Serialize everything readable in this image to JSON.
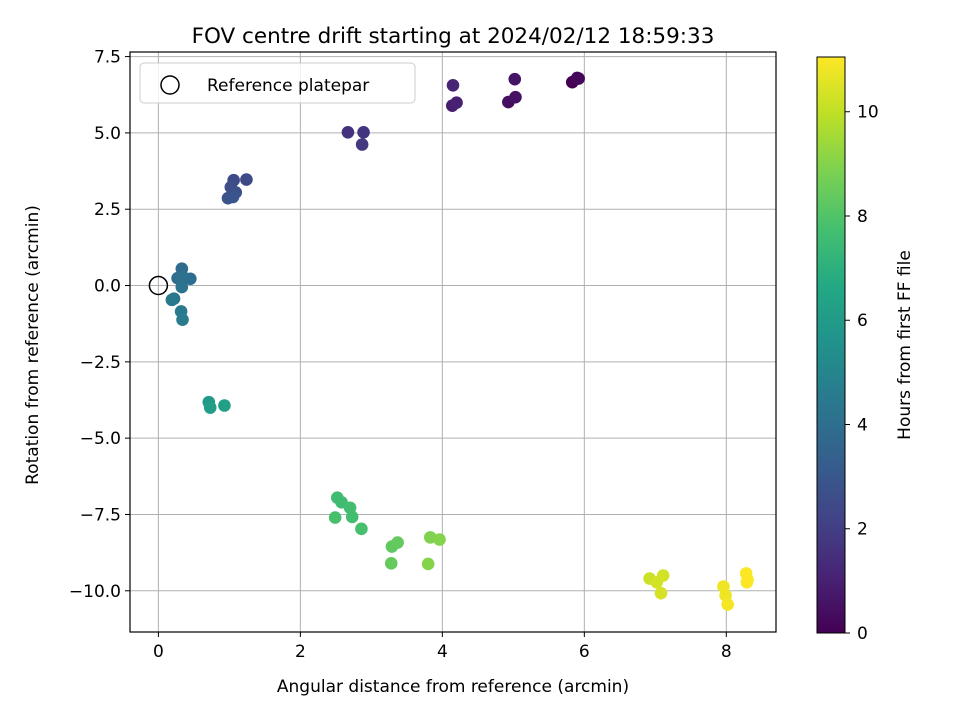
{
  "chart_data": {
    "type": "scatter",
    "title": "FOV centre drift starting at 2024/02/12 18:59:33",
    "xlabel": "Angular distance from reference (arcmin)",
    "ylabel": "Rotation from reference (arcmin)",
    "xlim": [
      -0.4,
      8.7
    ],
    "ylim": [
      -11.35,
      7.65
    ],
    "xticks": [
      0,
      2,
      4,
      6,
      8
    ],
    "xtick_labels": [
      "0",
      "2",
      "4",
      "6",
      "8"
    ],
    "yticks": [
      7.5,
      5.0,
      2.5,
      0.0,
      -2.5,
      -5.0,
      -7.5,
      -10.0
    ],
    "ytick_labels": [
      "7.5",
      "5.0",
      "2.5",
      "0.0",
      "−2.5",
      "−5.0",
      "−7.5",
      "−10.0"
    ],
    "grid": true,
    "legend": {
      "position": "upper-left",
      "entries": [
        "Reference platepar"
      ]
    },
    "reference_point": {
      "x": 0.0,
      "y": 0.0
    },
    "colorbar": {
      "label": "Hours from first FF file",
      "colormap": "viridis",
      "range": [
        0,
        11.05
      ],
      "ticks": [
        0,
        2,
        4,
        6,
        8,
        10
      ],
      "tick_labels": [
        "0",
        "2",
        "4",
        "6",
        "8",
        "10"
      ]
    },
    "points": [
      {
        "x": 5.83,
        "y": 6.66,
        "t": 0.0
      },
      {
        "x": 5.9,
        "y": 6.8,
        "t": 0.1
      },
      {
        "x": 5.92,
        "y": 6.78,
        "t": 0.2
      },
      {
        "x": 4.93,
        "y": 6.01,
        "t": 0.4
      },
      {
        "x": 5.03,
        "y": 6.17,
        "t": 0.5
      },
      {
        "x": 5.02,
        "y": 6.76,
        "t": 0.6
      },
      {
        "x": 4.14,
        "y": 5.89,
        "t": 0.9
      },
      {
        "x": 4.2,
        "y": 5.99,
        "t": 1.0
      },
      {
        "x": 4.15,
        "y": 6.56,
        "t": 1.1
      },
      {
        "x": 2.67,
        "y": 5.02,
        "t": 1.6
      },
      {
        "x": 2.89,
        "y": 5.02,
        "t": 1.7
      },
      {
        "x": 2.87,
        "y": 4.62,
        "t": 1.8
      },
      {
        "x": 1.24,
        "y": 3.47,
        "t": 2.4
      },
      {
        "x": 1.06,
        "y": 3.45,
        "t": 2.5
      },
      {
        "x": 1.02,
        "y": 3.22,
        "t": 2.6
      },
      {
        "x": 1.09,
        "y": 3.05,
        "t": 2.7
      },
      {
        "x": 0.98,
        "y": 2.86,
        "t": 2.8
      },
      {
        "x": 1.05,
        "y": 2.9,
        "t": 2.9
      },
      {
        "x": 0.33,
        "y": 0.55,
        "t": 3.8
      },
      {
        "x": 0.27,
        "y": 0.24,
        "t": 3.9
      },
      {
        "x": 0.45,
        "y": 0.22,
        "t": 4.0
      },
      {
        "x": 0.34,
        "y": 0.3,
        "t": 4.1
      },
      {
        "x": 0.33,
        "y": -0.05,
        "t": 4.2
      },
      {
        "x": 0.22,
        "y": -0.43,
        "t": 4.3
      },
      {
        "x": 0.19,
        "y": -0.47,
        "t": 4.4
      },
      {
        "x": 0.32,
        "y": -0.85,
        "t": 4.5
      },
      {
        "x": 0.34,
        "y": -1.12,
        "t": 4.6
      },
      {
        "x": 0.71,
        "y": -3.82,
        "t": 6.0
      },
      {
        "x": 0.73,
        "y": -4.0,
        "t": 6.1
      },
      {
        "x": 0.93,
        "y": -3.93,
        "t": 6.2
      },
      {
        "x": 2.52,
        "y": -6.95,
        "t": 7.6
      },
      {
        "x": 2.58,
        "y": -7.1,
        "t": 7.6
      },
      {
        "x": 2.7,
        "y": -7.28,
        "t": 7.7
      },
      {
        "x": 2.73,
        "y": -7.58,
        "t": 7.7
      },
      {
        "x": 2.49,
        "y": -7.6,
        "t": 7.8
      },
      {
        "x": 2.86,
        "y": -7.97,
        "t": 7.8
      },
      {
        "x": 3.29,
        "y": -8.55,
        "t": 8.3
      },
      {
        "x": 3.37,
        "y": -8.42,
        "t": 8.4
      },
      {
        "x": 3.28,
        "y": -9.1,
        "t": 8.4
      },
      {
        "x": 3.83,
        "y": -8.25,
        "t": 8.9
      },
      {
        "x": 3.96,
        "y": -8.32,
        "t": 9.0
      },
      {
        "x": 3.8,
        "y": -9.12,
        "t": 9.0
      },
      {
        "x": 6.92,
        "y": -9.6,
        "t": 10.2
      },
      {
        "x": 7.02,
        "y": -9.72,
        "t": 10.3
      },
      {
        "x": 7.11,
        "y": -9.5,
        "t": 10.3
      },
      {
        "x": 7.08,
        "y": -10.08,
        "t": 10.4
      },
      {
        "x": 7.96,
        "y": -9.86,
        "t": 10.8
      },
      {
        "x": 7.99,
        "y": -10.15,
        "t": 10.8
      },
      {
        "x": 8.02,
        "y": -10.45,
        "t": 10.9
      },
      {
        "x": 8.28,
        "y": -9.43,
        "t": 11.0
      },
      {
        "x": 8.3,
        "y": -9.64,
        "t": 11.0
      },
      {
        "x": 8.29,
        "y": -9.72,
        "t": 11.05
      }
    ]
  }
}
